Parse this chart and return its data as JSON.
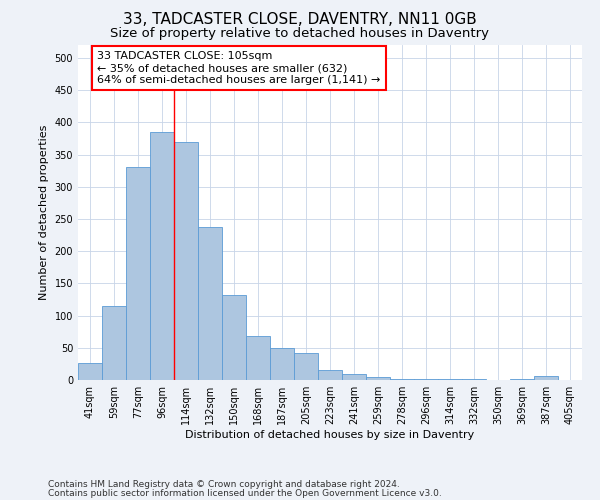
{
  "title": "33, TADCASTER CLOSE, DAVENTRY, NN11 0GB",
  "subtitle": "Size of property relative to detached houses in Daventry",
  "xlabel": "Distribution of detached houses by size in Daventry",
  "ylabel": "Number of detached properties",
  "bin_labels": [
    "41sqm",
    "59sqm",
    "77sqm",
    "96sqm",
    "114sqm",
    "132sqm",
    "150sqm",
    "168sqm",
    "187sqm",
    "205sqm",
    "223sqm",
    "241sqm",
    "259sqm",
    "278sqm",
    "296sqm",
    "314sqm",
    "332sqm",
    "350sqm",
    "369sqm",
    "387sqm",
    "405sqm"
  ],
  "bar_heights": [
    27,
    115,
    330,
    385,
    370,
    237,
    132,
    68,
    50,
    42,
    15,
    10,
    5,
    2,
    2,
    2,
    2,
    0,
    2,
    6,
    0
  ],
  "bar_color": "#adc6e0",
  "bar_edge_color": "#5b9bd5",
  "annotation_text": "33 TADCASTER CLOSE: 105sqm\n← 35% of detached houses are smaller (632)\n64% of semi-detached houses are larger (1,141) →",
  "annotation_box_color": "white",
  "annotation_box_edge": "red",
  "vline_x": 3.5,
  "vline_color": "red",
  "ylim": [
    0,
    520
  ],
  "yticks": [
    0,
    50,
    100,
    150,
    200,
    250,
    300,
    350,
    400,
    450,
    500
  ],
  "footer1": "Contains HM Land Registry data © Crown copyright and database right 2024.",
  "footer2": "Contains public sector information licensed under the Open Government Licence v3.0.",
  "bg_color": "#eef2f8",
  "plot_bg_color": "white",
  "grid_color": "#c8d4e8",
  "title_fontsize": 11,
  "subtitle_fontsize": 9.5,
  "axis_label_fontsize": 8,
  "tick_fontsize": 7,
  "annotation_fontsize": 8,
  "footer_fontsize": 6.5
}
